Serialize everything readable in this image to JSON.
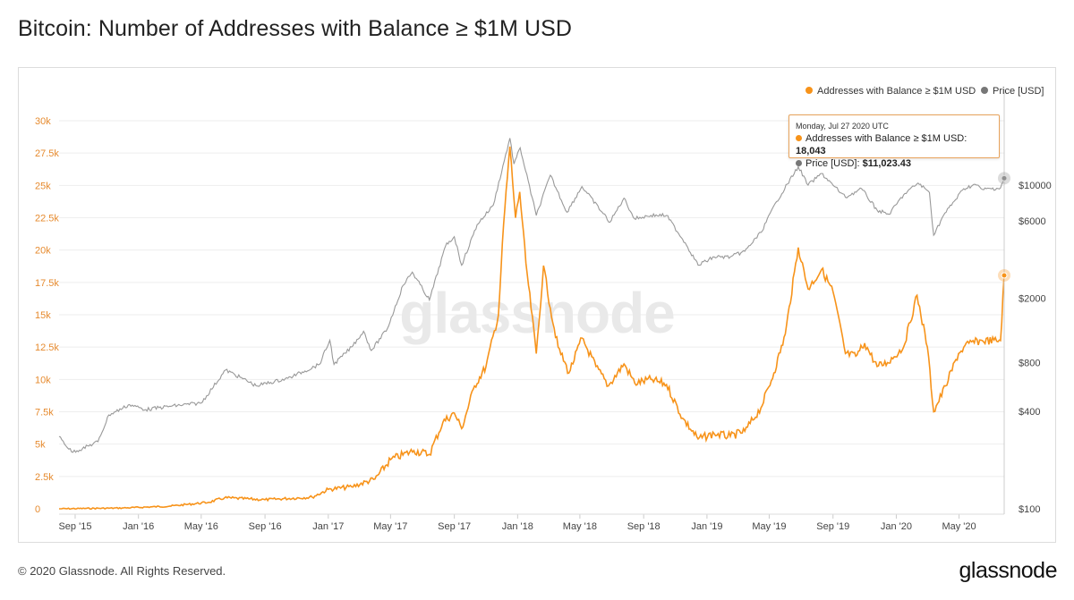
{
  "title": "Bitcoin: Number of Addresses with Balance ≥ $1M USD",
  "footer": {
    "copyright": "© 2020 Glassnode. All Rights Reserved.",
    "logo": "glassnode"
  },
  "watermark": "glassnode",
  "colors": {
    "addresses": "#f7931a",
    "price": "#999999",
    "left_axis": "#e68a2e",
    "grid": "#eeeeee"
  },
  "tooltip": {
    "date": "Monday, Jul 27 2020 UTC",
    "series1_label": "Addresses with Balance ≥ $1M USD:",
    "series1_value": "18,043",
    "series2_label": "Price [USD]:",
    "series2_value": "$11,023.43"
  },
  "chart_data": {
    "type": "line",
    "title": "Bitcoin: Number of Addresses with Balance ≥ $1M USD",
    "legend": [
      "Addresses with Balance ≥ $1M USD",
      "Price [USD]"
    ],
    "legend_position": "top-right",
    "x_range": [
      "2015-08-01",
      "2020-07-27"
    ],
    "x_ticks": [
      "Sep '15",
      "Jan '16",
      "May '16",
      "Sep '16",
      "Jan '17",
      "May '17",
      "Sep '17",
      "Jan '18",
      "May '18",
      "Sep '18",
      "Jan '19",
      "May '19",
      "Sep '19",
      "Jan '20",
      "May '20"
    ],
    "left_axis": {
      "label": "Addresses with Balance ≥ $1M USD",
      "range": [
        0,
        30000
      ],
      "ticks": [
        "0",
        "2.5k",
        "5k",
        "7.5k",
        "10k",
        "12.5k",
        "15k",
        "17.5k",
        "20k",
        "22.5k",
        "25k",
        "27.5k",
        "30k"
      ],
      "tick_values": [
        0,
        2500,
        5000,
        7500,
        10000,
        12500,
        15000,
        17500,
        20000,
        22500,
        25000,
        27500,
        30000
      ]
    },
    "right_axis": {
      "label": "Price [USD]",
      "scale": "log",
      "range": [
        100,
        20000
      ],
      "ticks": [
        "$100",
        "$400",
        "$800",
        "$2000",
        "$6000",
        "$10000"
      ],
      "tick_values": [
        100,
        400,
        800,
        2000,
        6000,
        10000
      ]
    },
    "series": [
      {
        "name": "Addresses with Balance ≥ $1M USD",
        "axis": "left",
        "points": [
          [
            "2015-08-01",
            0
          ],
          [
            "2015-12-01",
            60
          ],
          [
            "2016-03-01",
            200
          ],
          [
            "2016-05-15",
            500
          ],
          [
            "2016-06-15",
            850
          ],
          [
            "2016-09-01",
            700
          ],
          [
            "2016-12-01",
            900
          ],
          [
            "2017-01-01",
            1500
          ],
          [
            "2017-02-15",
            1700
          ],
          [
            "2017-04-01",
            2300
          ],
          [
            "2017-05-01",
            3800
          ],
          [
            "2017-06-15",
            4500
          ],
          [
            "2017-07-15",
            4200
          ],
          [
            "2017-08-10",
            6700
          ],
          [
            "2017-09-01",
            7400
          ],
          [
            "2017-09-15",
            6200
          ],
          [
            "2017-10-10",
            9500
          ],
          [
            "2017-11-01",
            11000
          ],
          [
            "2017-11-25",
            15000
          ],
          [
            "2017-12-05",
            22000
          ],
          [
            "2017-12-17",
            28000
          ],
          [
            "2017-12-28",
            22500
          ],
          [
            "2018-01-05",
            24500
          ],
          [
            "2018-01-17",
            19000
          ],
          [
            "2018-02-06",
            12000
          ],
          [
            "2018-02-20",
            18800
          ],
          [
            "2018-03-05",
            15500
          ],
          [
            "2018-03-20",
            12500
          ],
          [
            "2018-04-10",
            10500
          ],
          [
            "2018-05-05",
            13200
          ],
          [
            "2018-06-01",
            11000
          ],
          [
            "2018-06-25",
            9500
          ],
          [
            "2018-07-25",
            11200
          ],
          [
            "2018-08-15",
            9700
          ],
          [
            "2018-09-15",
            10000
          ],
          [
            "2018-10-15",
            9600
          ],
          [
            "2018-11-15",
            7000
          ],
          [
            "2018-12-15",
            5400
          ],
          [
            "2019-01-15",
            5800
          ],
          [
            "2019-02-15",
            5600
          ],
          [
            "2019-03-15",
            6000
          ],
          [
            "2019-04-15",
            7800
          ],
          [
            "2019-05-10",
            10500
          ],
          [
            "2019-06-01",
            13500
          ],
          [
            "2019-06-26",
            20200
          ],
          [
            "2019-07-15",
            17000
          ],
          [
            "2019-08-10",
            18500
          ],
          [
            "2019-09-01",
            16800
          ],
          [
            "2019-09-25",
            12000
          ],
          [
            "2019-10-15",
            11800
          ],
          [
            "2019-11-01",
            12800
          ],
          [
            "2019-11-25",
            11000
          ],
          [
            "2019-12-15",
            11300
          ],
          [
            "2020-01-15",
            12500
          ],
          [
            "2020-02-10",
            16500
          ],
          [
            "2020-03-01",
            12500
          ],
          [
            "2020-03-13",
            7500
          ],
          [
            "2020-04-05",
            9500
          ],
          [
            "2020-04-30",
            12000
          ],
          [
            "2020-05-20",
            12800
          ],
          [
            "2020-06-15",
            13000
          ],
          [
            "2020-07-20",
            13000
          ],
          [
            "2020-07-27",
            18043
          ]
        ]
      },
      {
        "name": "Price [USD]",
        "axis": "right",
        "points": [
          [
            "2015-08-01",
            280
          ],
          [
            "2015-08-25",
            225
          ],
          [
            "2015-09-15",
            235
          ],
          [
            "2015-10-15",
            260
          ],
          [
            "2015-11-05",
            380
          ],
          [
            "2015-12-15",
            440
          ],
          [
            "2016-01-15",
            410
          ],
          [
            "2016-03-01",
            430
          ],
          [
            "2016-05-01",
            450
          ],
          [
            "2016-06-17",
            720
          ],
          [
            "2016-07-15",
            650
          ],
          [
            "2016-08-15",
            575
          ],
          [
            "2016-10-15",
            640
          ],
          [
            "2016-12-15",
            780
          ],
          [
            "2017-01-04",
            1100
          ],
          [
            "2017-01-12",
            780
          ],
          [
            "2017-02-15",
            1000
          ],
          [
            "2017-03-10",
            1250
          ],
          [
            "2017-03-25",
            950
          ],
          [
            "2017-04-25",
            1300
          ],
          [
            "2017-05-25",
            2400
          ],
          [
            "2017-06-12",
            2900
          ],
          [
            "2017-07-15",
            1950
          ],
          [
            "2017-08-15",
            4200
          ],
          [
            "2017-09-01",
            4800
          ],
          [
            "2017-09-15",
            3200
          ],
          [
            "2017-10-15",
            5700
          ],
          [
            "2017-11-15",
            7500
          ],
          [
            "2017-12-17",
            19500
          ],
          [
            "2017-12-25",
            13500
          ],
          [
            "2018-01-06",
            17000
          ],
          [
            "2018-02-06",
            6500
          ],
          [
            "2018-03-05",
            11500
          ],
          [
            "2018-04-06",
            6800
          ],
          [
            "2018-05-05",
            9800
          ],
          [
            "2018-06-28",
            5900
          ],
          [
            "2018-07-25",
            8300
          ],
          [
            "2018-08-14",
            6200
          ],
          [
            "2018-09-15",
            6500
          ],
          [
            "2018-10-15",
            6500
          ],
          [
            "2018-11-20",
            4400
          ],
          [
            "2018-12-15",
            3200
          ],
          [
            "2019-01-15",
            3600
          ],
          [
            "2019-02-15",
            3600
          ],
          [
            "2019-03-15",
            3900
          ],
          [
            "2019-04-15",
            5100
          ],
          [
            "2019-05-15",
            7900
          ],
          [
            "2019-06-26",
            13000
          ],
          [
            "2019-07-15",
            10000
          ],
          [
            "2019-08-10",
            11800
          ],
          [
            "2019-09-01",
            10000
          ],
          [
            "2019-09-25",
            8400
          ],
          [
            "2019-10-26",
            9500
          ],
          [
            "2019-11-25",
            7000
          ],
          [
            "2019-12-18",
            6600
          ],
          [
            "2020-01-15",
            8700
          ],
          [
            "2020-02-12",
            10300
          ],
          [
            "2020-03-05",
            9000
          ],
          [
            "2020-03-13",
            4900
          ],
          [
            "2020-04-01",
            6500
          ],
          [
            "2020-05-10",
            9500
          ],
          [
            "2020-06-01",
            10100
          ],
          [
            "2020-06-15",
            9400
          ],
          [
            "2020-07-20",
            9600
          ],
          [
            "2020-07-27",
            11023
          ]
        ]
      }
    ],
    "annotations": [
      "Monday, Jul 27 2020 UTC — Addresses with Balance ≥ $1M USD: 18,043 — Price [USD]: $11,023.43"
    ]
  }
}
